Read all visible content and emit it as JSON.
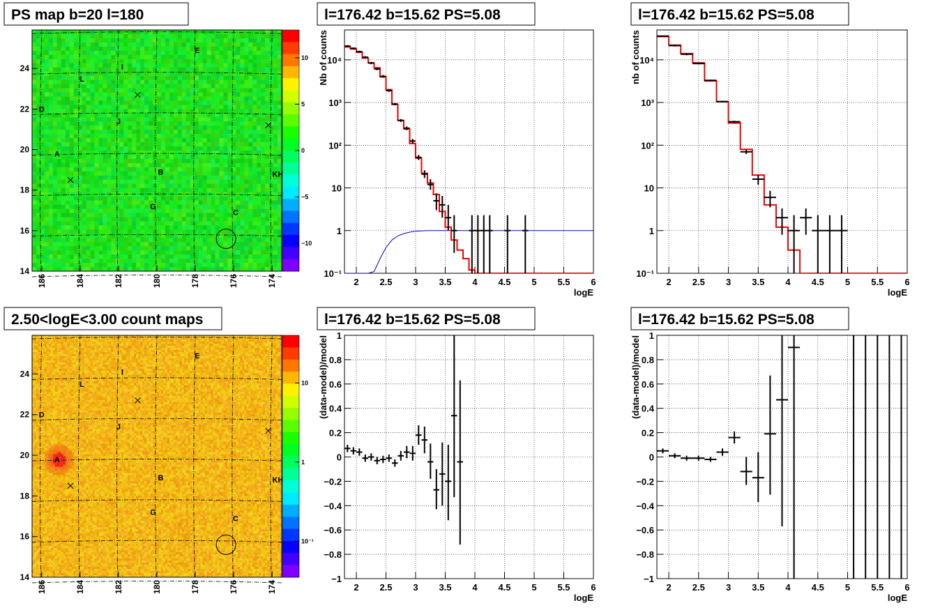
{
  "chart_data": [
    {
      "id": "ps_map",
      "type": "heatmap",
      "title": "PS map b=20 l=180",
      "xticks": [
        "186",
        "184",
        "182",
        "180",
        "178",
        "176",
        "174"
      ],
      "xtick_values": [
        186,
        184,
        182,
        180,
        178,
        176,
        174
      ],
      "yticks": [
        "14",
        "16",
        "18",
        "20",
        "22",
        "24"
      ],
      "ytick_values": [
        14,
        16,
        18,
        20,
        22,
        24
      ],
      "xlim": [
        186.5,
        173.5
      ],
      "ylim": [
        14,
        25.9
      ],
      "colorbar": {
        "ticks": [
          "10",
          "5",
          "0",
          "−5",
          "−10"
        ],
        "tick_values": [
          10,
          5,
          0,
          -5,
          -10
        ],
        "range": [
          -13,
          13
        ]
      },
      "sources": [
        {
          "label": "E",
          "l": 177.9,
          "b": 24.9
        },
        {
          "label": "I",
          "l": 181.8,
          "b": 24.1
        },
        {
          "label": "L",
          "l": 183.9,
          "b": 23.5
        },
        {
          "label": "D",
          "l": 186.0,
          "b": 22.0
        },
        {
          "label": "J",
          "l": 182.0,
          "b": 21.4
        },
        {
          "label": "A",
          "l": 185.2,
          "b": 19.8
        },
        {
          "label": "B",
          "l": 179.8,
          "b": 18.9
        },
        {
          "label": "KH",
          "l": 173.7,
          "b": 18.8
        },
        {
          "label": "G",
          "l": 180.2,
          "b": 17.2
        },
        {
          "label": "C",
          "l": 175.9,
          "b": 16.9
        }
      ],
      "crosses": [
        {
          "l": 181.0,
          "b": 22.7
        },
        {
          "l": 174.2,
          "b": 21.2
        },
        {
          "l": 184.5,
          "b": 18.5
        }
      ],
      "circle": {
        "l": 176.4,
        "b": 15.6
      }
    },
    {
      "id": "count_map",
      "type": "heatmap",
      "title": "2.50<logE<3.00 count maps",
      "xticks": [
        "186",
        "184",
        "182",
        "180",
        "178",
        "176",
        "174"
      ],
      "xtick_values": [
        186,
        184,
        182,
        180,
        178,
        176,
        174
      ],
      "yticks": [
        "14",
        "16",
        "18",
        "20",
        "22",
        "24"
      ],
      "ytick_values": [
        14,
        16,
        18,
        20,
        22,
        24
      ],
      "xlim": [
        186.5,
        173.5
      ],
      "ylim": [
        14,
        25.9
      ],
      "colorbar": {
        "log": true,
        "ticks": [
          "10",
          "1",
          "10⁻¹"
        ],
        "tick_values": [
          10,
          1,
          0.1
        ],
        "range": [
          0.035,
          40
        ]
      },
      "sources": [
        {
          "label": "E",
          "l": 177.9,
          "b": 24.9
        },
        {
          "label": "I",
          "l": 181.8,
          "b": 24.1
        },
        {
          "label": "L",
          "l": 183.9,
          "b": 23.5
        },
        {
          "label": "D",
          "l": 186.0,
          "b": 22.0
        },
        {
          "label": "J",
          "l": 182.0,
          "b": 21.4
        },
        {
          "label": "A",
          "l": 185.2,
          "b": 19.8
        },
        {
          "label": "B",
          "l": 179.8,
          "b": 18.9
        },
        {
          "label": "KH",
          "l": 173.7,
          "b": 18.8
        },
        {
          "label": "G",
          "l": 180.2,
          "b": 17.2
        },
        {
          "label": "C",
          "l": 175.9,
          "b": 16.9
        }
      ],
      "crosses": [
        {
          "l": 181.0,
          "b": 22.7
        },
        {
          "l": 174.2,
          "b": 21.2
        },
        {
          "l": 184.5,
          "b": 18.5
        }
      ],
      "circle": {
        "l": 176.4,
        "b": 15.6
      }
    },
    {
      "id": "spectrum_1",
      "type": "line",
      "title": "l=176.42 b=15.62 PS=5.08",
      "xlabel": "logE",
      "ylabel": "Nb of counts",
      "xlim": [
        1.8,
        6
      ],
      "ylim": [
        0.1,
        50000
      ],
      "ylog": true,
      "grid": true,
      "xticks": [
        "2",
        "2.5",
        "3",
        "3.5",
        "4",
        "4.5",
        "5",
        "5.5",
        "6"
      ],
      "xtick_values": [
        2,
        2.5,
        3,
        3.5,
        4,
        4.5,
        5,
        5.5,
        6
      ],
      "yticks": [
        "10⁻¹",
        "1",
        "10",
        "10²",
        "10³",
        "10⁴"
      ],
      "ytick_values": [
        0.1,
        1,
        10,
        100,
        1000,
        10000
      ],
      "model_step": {
        "edges": [
          1.8,
          1.9,
          2.0,
          2.1,
          2.2,
          2.3,
          2.4,
          2.5,
          2.6,
          2.7,
          2.8,
          2.9,
          3.0,
          3.1,
          3.2,
          3.3,
          3.4,
          3.5,
          3.6,
          3.7,
          3.8,
          3.9,
          4.0,
          4.1,
          4.2,
          6.0
        ],
        "values": [
          20000,
          18000,
          15000,
          11000,
          8500,
          6500,
          4000,
          2000,
          900,
          380,
          240,
          110,
          50,
          22,
          13,
          7,
          2.8,
          1.2,
          0.6,
          0.35,
          0.22,
          0.12,
          0.08,
          0.05,
          0.05
        ]
      },
      "efficiency_curve": {
        "x": [
          1.8,
          2.0,
          2.2,
          2.3,
          2.4,
          2.5,
          2.6,
          2.7,
          2.8,
          2.9,
          3.0,
          3.2,
          3.4,
          3.6,
          6.0
        ],
        "y": [
          0.1,
          0.1,
          0.1,
          0.11,
          0.22,
          0.4,
          0.6,
          0.75,
          0.85,
          0.92,
          0.97,
          1.0,
          1.0,
          1.0,
          1.0
        ]
      },
      "data_points": [
        {
          "x": 1.85,
          "y": 21000,
          "ylo": 20000,
          "yhi": 22000,
          "xw": 0.05
        },
        {
          "x": 1.95,
          "y": 18500,
          "ylo": 17500,
          "yhi": 19500,
          "xw": 0.05
        },
        {
          "x": 2.05,
          "y": 15500,
          "ylo": 14800,
          "yhi": 16300,
          "xw": 0.05
        },
        {
          "x": 2.15,
          "y": 11500,
          "ylo": 10800,
          "yhi": 12200,
          "xw": 0.05
        },
        {
          "x": 2.25,
          "y": 8400,
          "ylo": 7900,
          "yhi": 8900,
          "xw": 0.05
        },
        {
          "x": 2.35,
          "y": 6100,
          "ylo": 5700,
          "yhi": 6500,
          "xw": 0.05
        },
        {
          "x": 2.45,
          "y": 4100,
          "ylo": 3800,
          "yhi": 4400,
          "xw": 0.05
        },
        {
          "x": 2.55,
          "y": 1900,
          "ylo": 1780,
          "yhi": 2020,
          "xw": 0.05
        },
        {
          "x": 2.65,
          "y": 920,
          "ylo": 860,
          "yhi": 980,
          "xw": 0.05
        },
        {
          "x": 2.75,
          "y": 380,
          "ylo": 350,
          "yhi": 410,
          "xw": 0.05
        },
        {
          "x": 2.85,
          "y": 250,
          "ylo": 225,
          "yhi": 275,
          "xw": 0.05
        },
        {
          "x": 2.95,
          "y": 125,
          "ylo": 110,
          "yhi": 140,
          "xw": 0.05
        },
        {
          "x": 3.05,
          "y": 52,
          "ylo": 45,
          "yhi": 59,
          "xw": 0.05
        },
        {
          "x": 3.15,
          "y": 21,
          "ylo": 17,
          "yhi": 26,
          "xw": 0.05
        },
        {
          "x": 3.25,
          "y": 12,
          "ylo": 9,
          "yhi": 16,
          "xw": 0.05
        },
        {
          "x": 3.35,
          "y": 5,
          "ylo": 3,
          "yhi": 7.5,
          "xw": 0.05
        },
        {
          "x": 3.45,
          "y": 4,
          "ylo": 2,
          "yhi": 6.5,
          "xw": 0.05
        },
        {
          "x": 3.55,
          "y": 2,
          "ylo": 1,
          "yhi": 4,
          "xw": 0.05
        },
        {
          "x": 3.65,
          "y": 1,
          "ylo": 0.3,
          "yhi": 2.3,
          "xw": 0.05
        },
        {
          "x": 3.95,
          "y": 1,
          "ylo": 0.1,
          "yhi": 2.3,
          "xw": 0.05
        },
        {
          "x": 4.05,
          "y": 1,
          "ylo": 0.1,
          "yhi": 2.3,
          "xw": 0.05
        },
        {
          "x": 4.15,
          "y": 1,
          "ylo": 0.1,
          "yhi": 2.3,
          "xw": 0.05
        },
        {
          "x": 4.25,
          "y": 1,
          "ylo": 0.1,
          "yhi": 2.3,
          "xw": 0.05
        },
        {
          "x": 4.55,
          "y": 1,
          "ylo": 0.1,
          "yhi": 2.3,
          "xw": 0.05
        },
        {
          "x": 4.85,
          "y": 1,
          "ylo": 0.1,
          "yhi": 2.3,
          "xw": 0.05
        }
      ]
    },
    {
      "id": "spectrum_2",
      "type": "line",
      "title": "l=176.42 b=15.62 PS=5.08",
      "xlabel": "logE",
      "ylabel": "nb of counts",
      "xlim": [
        1.8,
        6
      ],
      "ylim": [
        0.1,
        50000
      ],
      "ylog": true,
      "grid": true,
      "xticks": [
        "2",
        "2.5",
        "3",
        "3.5",
        "4",
        "4.5",
        "5",
        "5.5",
        "6"
      ],
      "xtick_values": [
        2,
        2.5,
        3,
        3.5,
        4,
        4.5,
        5,
        5.5,
        6
      ],
      "yticks": [
        "10⁻¹",
        "1",
        "10",
        "10²",
        "10³",
        "10⁴"
      ],
      "ytick_values": [
        0.1,
        1,
        10,
        100,
        1000,
        10000
      ],
      "model_step": {
        "edges": [
          1.8,
          2.0,
          2.2,
          2.4,
          2.6,
          2.8,
          3.0,
          3.2,
          3.4,
          3.6,
          3.8,
          4.0,
          4.2,
          6.0
        ],
        "values": [
          35000,
          22000,
          14000,
          8500,
          3200,
          1050,
          330,
          80,
          20,
          4,
          1.2,
          0.35,
          0.1
        ]
      },
      "data_points": [
        {
          "x": 1.9,
          "y": 36000,
          "ylo": 34500,
          "yhi": 37500,
          "xw": 0.1
        },
        {
          "x": 2.1,
          "y": 21500,
          "ylo": 20500,
          "yhi": 22500,
          "xw": 0.1
        },
        {
          "x": 2.3,
          "y": 13500,
          "ylo": 12800,
          "yhi": 14200,
          "xw": 0.1
        },
        {
          "x": 2.5,
          "y": 8200,
          "ylo": 7800,
          "yhi": 8600,
          "xw": 0.1
        },
        {
          "x": 2.7,
          "y": 3300,
          "ylo": 3150,
          "yhi": 3450,
          "xw": 0.1
        },
        {
          "x": 2.9,
          "y": 1050,
          "ylo": 1000,
          "yhi": 1100,
          "xw": 0.1
        },
        {
          "x": 3.1,
          "y": 355,
          "ylo": 335,
          "yhi": 375,
          "xw": 0.1
        },
        {
          "x": 3.3,
          "y": 70,
          "ylo": 62,
          "yhi": 78,
          "xw": 0.1
        },
        {
          "x": 3.5,
          "y": 16,
          "ylo": 12,
          "yhi": 20,
          "xw": 0.1
        },
        {
          "x": 3.7,
          "y": 6,
          "ylo": 3.5,
          "yhi": 8.5,
          "xw": 0.1
        },
        {
          "x": 3.9,
          "y": 2,
          "ylo": 0.8,
          "yhi": 3.3,
          "xw": 0.1
        },
        {
          "x": 4.1,
          "y": 1,
          "ylo": 0.1,
          "yhi": 2.3,
          "xw": 0.1
        },
        {
          "x": 4.3,
          "y": 2,
          "ylo": 0.8,
          "yhi": 3.3,
          "xw": 0.1
        },
        {
          "x": 4.5,
          "y": 1,
          "ylo": 0.1,
          "yhi": 2.3,
          "xw": 0.1
        },
        {
          "x": 4.7,
          "y": 1,
          "ylo": 0.1,
          "yhi": 2.3,
          "xw": 0.1
        },
        {
          "x": 4.9,
          "y": 1,
          "ylo": 0.1,
          "yhi": 2.3,
          "xw": 0.1
        }
      ]
    },
    {
      "id": "residual_1",
      "type": "scatter",
      "title": "l=176.42 b=15.62 PS=5.08",
      "xlabel": "logE",
      "ylabel": "(data-model)/model",
      "xlim": [
        1.8,
        6
      ],
      "ylim": [
        -1,
        1
      ],
      "grid": true,
      "xticks": [
        "2",
        "2.5",
        "3",
        "3.5",
        "4",
        "4.5",
        "5",
        "5.5",
        "6"
      ],
      "xtick_values": [
        2,
        2.5,
        3,
        3.5,
        4,
        4.5,
        5,
        5.5,
        6
      ],
      "yticks": [
        "−1",
        "−0.8",
        "−0.6",
        "−0.4",
        "−0.2",
        "0",
        "0.2",
        "0.4",
        "0.6",
        "0.8",
        "1"
      ],
      "ytick_values": [
        -1,
        -0.8,
        -0.6,
        -0.4,
        -0.2,
        0,
        0.2,
        0.4,
        0.6,
        0.8,
        1
      ],
      "data_points": [
        {
          "x": 1.85,
          "y": 0.07,
          "ylo": 0.04,
          "yhi": 0.1,
          "xw": 0.05
        },
        {
          "x": 1.95,
          "y": 0.05,
          "ylo": 0.02,
          "yhi": 0.08,
          "xw": 0.05
        },
        {
          "x": 2.05,
          "y": 0.04,
          "ylo": 0.01,
          "yhi": 0.07,
          "xw": 0.05
        },
        {
          "x": 2.15,
          "y": -0.01,
          "ylo": -0.04,
          "yhi": 0.02,
          "xw": 0.05
        },
        {
          "x": 2.25,
          "y": 0.0,
          "ylo": -0.03,
          "yhi": 0.03,
          "xw": 0.05
        },
        {
          "x": 2.35,
          "y": -0.03,
          "ylo": -0.06,
          "yhi": 0.0,
          "xw": 0.05
        },
        {
          "x": 2.45,
          "y": -0.02,
          "ylo": -0.05,
          "yhi": 0.01,
          "xw": 0.05
        },
        {
          "x": 2.55,
          "y": -0.01,
          "ylo": -0.04,
          "yhi": 0.02,
          "xw": 0.05
        },
        {
          "x": 2.65,
          "y": -0.05,
          "ylo": -0.08,
          "yhi": -0.02,
          "xw": 0.05
        },
        {
          "x": 2.75,
          "y": 0.01,
          "ylo": -0.03,
          "yhi": 0.05,
          "xw": 0.05
        },
        {
          "x": 2.85,
          "y": 0.04,
          "ylo": -0.01,
          "yhi": 0.09,
          "xw": 0.05
        },
        {
          "x": 2.95,
          "y": 0.03,
          "ylo": -0.03,
          "yhi": 0.09,
          "xw": 0.05
        },
        {
          "x": 3.05,
          "y": 0.18,
          "ylo": 0.1,
          "yhi": 0.26,
          "xw": 0.05
        },
        {
          "x": 3.15,
          "y": 0.14,
          "ylo": 0.03,
          "yhi": 0.25,
          "xw": 0.05
        },
        {
          "x": 3.25,
          "y": -0.04,
          "ylo": -0.18,
          "yhi": 0.11,
          "xw": 0.05
        },
        {
          "x": 3.35,
          "y": -0.27,
          "ylo": -0.43,
          "yhi": -0.1,
          "xw": 0.05
        },
        {
          "x": 3.45,
          "y": -0.14,
          "ylo": -0.4,
          "yhi": 0.12,
          "xw": 0.05
        },
        {
          "x": 3.55,
          "y": -0.2,
          "ylo": -0.52,
          "yhi": 0.1,
          "xw": 0.05
        },
        {
          "x": 3.65,
          "y": 0.34,
          "ylo": -0.33,
          "yhi": 1.0,
          "xw": 0.05
        },
        {
          "x": 3.75,
          "y": -0.04,
          "ylo": -0.72,
          "yhi": 0.63,
          "xw": 0.05
        }
      ]
    },
    {
      "id": "residual_2",
      "type": "scatter",
      "title": "l=176.42 b=15.62 PS=5.08",
      "xlabel": "logE",
      "ylabel": "(data-model)/model",
      "xlim": [
        1.8,
        6
      ],
      "ylim": [
        -1,
        1
      ],
      "grid": true,
      "xticks": [
        "2",
        "2.5",
        "3",
        "3.5",
        "4",
        "4.5",
        "5",
        "5.5",
        "6"
      ],
      "xtick_values": [
        2,
        2.5,
        3,
        3.5,
        4,
        4.5,
        5,
        5.5,
        6
      ],
      "yticks": [
        "−1",
        "−0.8",
        "−0.6",
        "−0.4",
        "−0.2",
        "0",
        "0.2",
        "0.4",
        "0.6",
        "0.8",
        "1"
      ],
      "ytick_values": [
        -1,
        -0.8,
        -0.6,
        -0.4,
        -0.2,
        0,
        0.2,
        0.4,
        0.6,
        0.8,
        1
      ],
      "data_points": [
        {
          "x": 1.9,
          "y": 0.05,
          "ylo": 0.03,
          "yhi": 0.07,
          "xw": 0.1
        },
        {
          "x": 2.1,
          "y": 0.01,
          "ylo": -0.01,
          "yhi": 0.03,
          "xw": 0.1
        },
        {
          "x": 2.3,
          "y": -0.01,
          "ylo": -0.03,
          "yhi": 0.01,
          "xw": 0.1
        },
        {
          "x": 2.5,
          "y": -0.01,
          "ylo": -0.03,
          "yhi": 0.01,
          "xw": 0.1
        },
        {
          "x": 2.7,
          "y": -0.02,
          "ylo": -0.04,
          "yhi": 0.0,
          "xw": 0.1
        },
        {
          "x": 2.9,
          "y": 0.04,
          "ylo": 0.01,
          "yhi": 0.07,
          "xw": 0.1
        },
        {
          "x": 3.1,
          "y": 0.16,
          "ylo": 0.11,
          "yhi": 0.21,
          "xw": 0.1
        },
        {
          "x": 3.3,
          "y": -0.12,
          "ylo": -0.23,
          "yhi": 0.0,
          "xw": 0.1
        },
        {
          "x": 3.5,
          "y": -0.17,
          "ylo": -0.37,
          "yhi": 0.04,
          "xw": 0.1
        },
        {
          "x": 3.7,
          "y": 0.19,
          "ylo": -0.31,
          "yhi": 0.67,
          "xw": 0.1
        },
        {
          "x": 3.9,
          "y": 0.47,
          "ylo": -0.57,
          "yhi": 1.0,
          "xw": 0.1
        },
        {
          "x": 4.1,
          "y": 0.9,
          "ylo": -1.0,
          "yhi": 1.0,
          "xw": 0.1
        },
        {
          "x": 5.1,
          "y": 1.0,
          "ylo": -1.0,
          "yhi": 1.0,
          "xw": 0.0
        },
        {
          "x": 5.3,
          "y": 1.0,
          "ylo": -1.0,
          "yhi": 1.0,
          "xw": 0.0
        },
        {
          "x": 5.5,
          "y": 1.0,
          "ylo": -1.0,
          "yhi": 1.0,
          "xw": 0.0
        },
        {
          "x": 5.7,
          "y": 1.0,
          "ylo": -1.0,
          "yhi": 1.0,
          "xw": 0.0
        },
        {
          "x": 5.9,
          "y": 1.0,
          "ylo": -1.0,
          "yhi": 1.0,
          "xw": 0.0
        }
      ]
    }
  ]
}
